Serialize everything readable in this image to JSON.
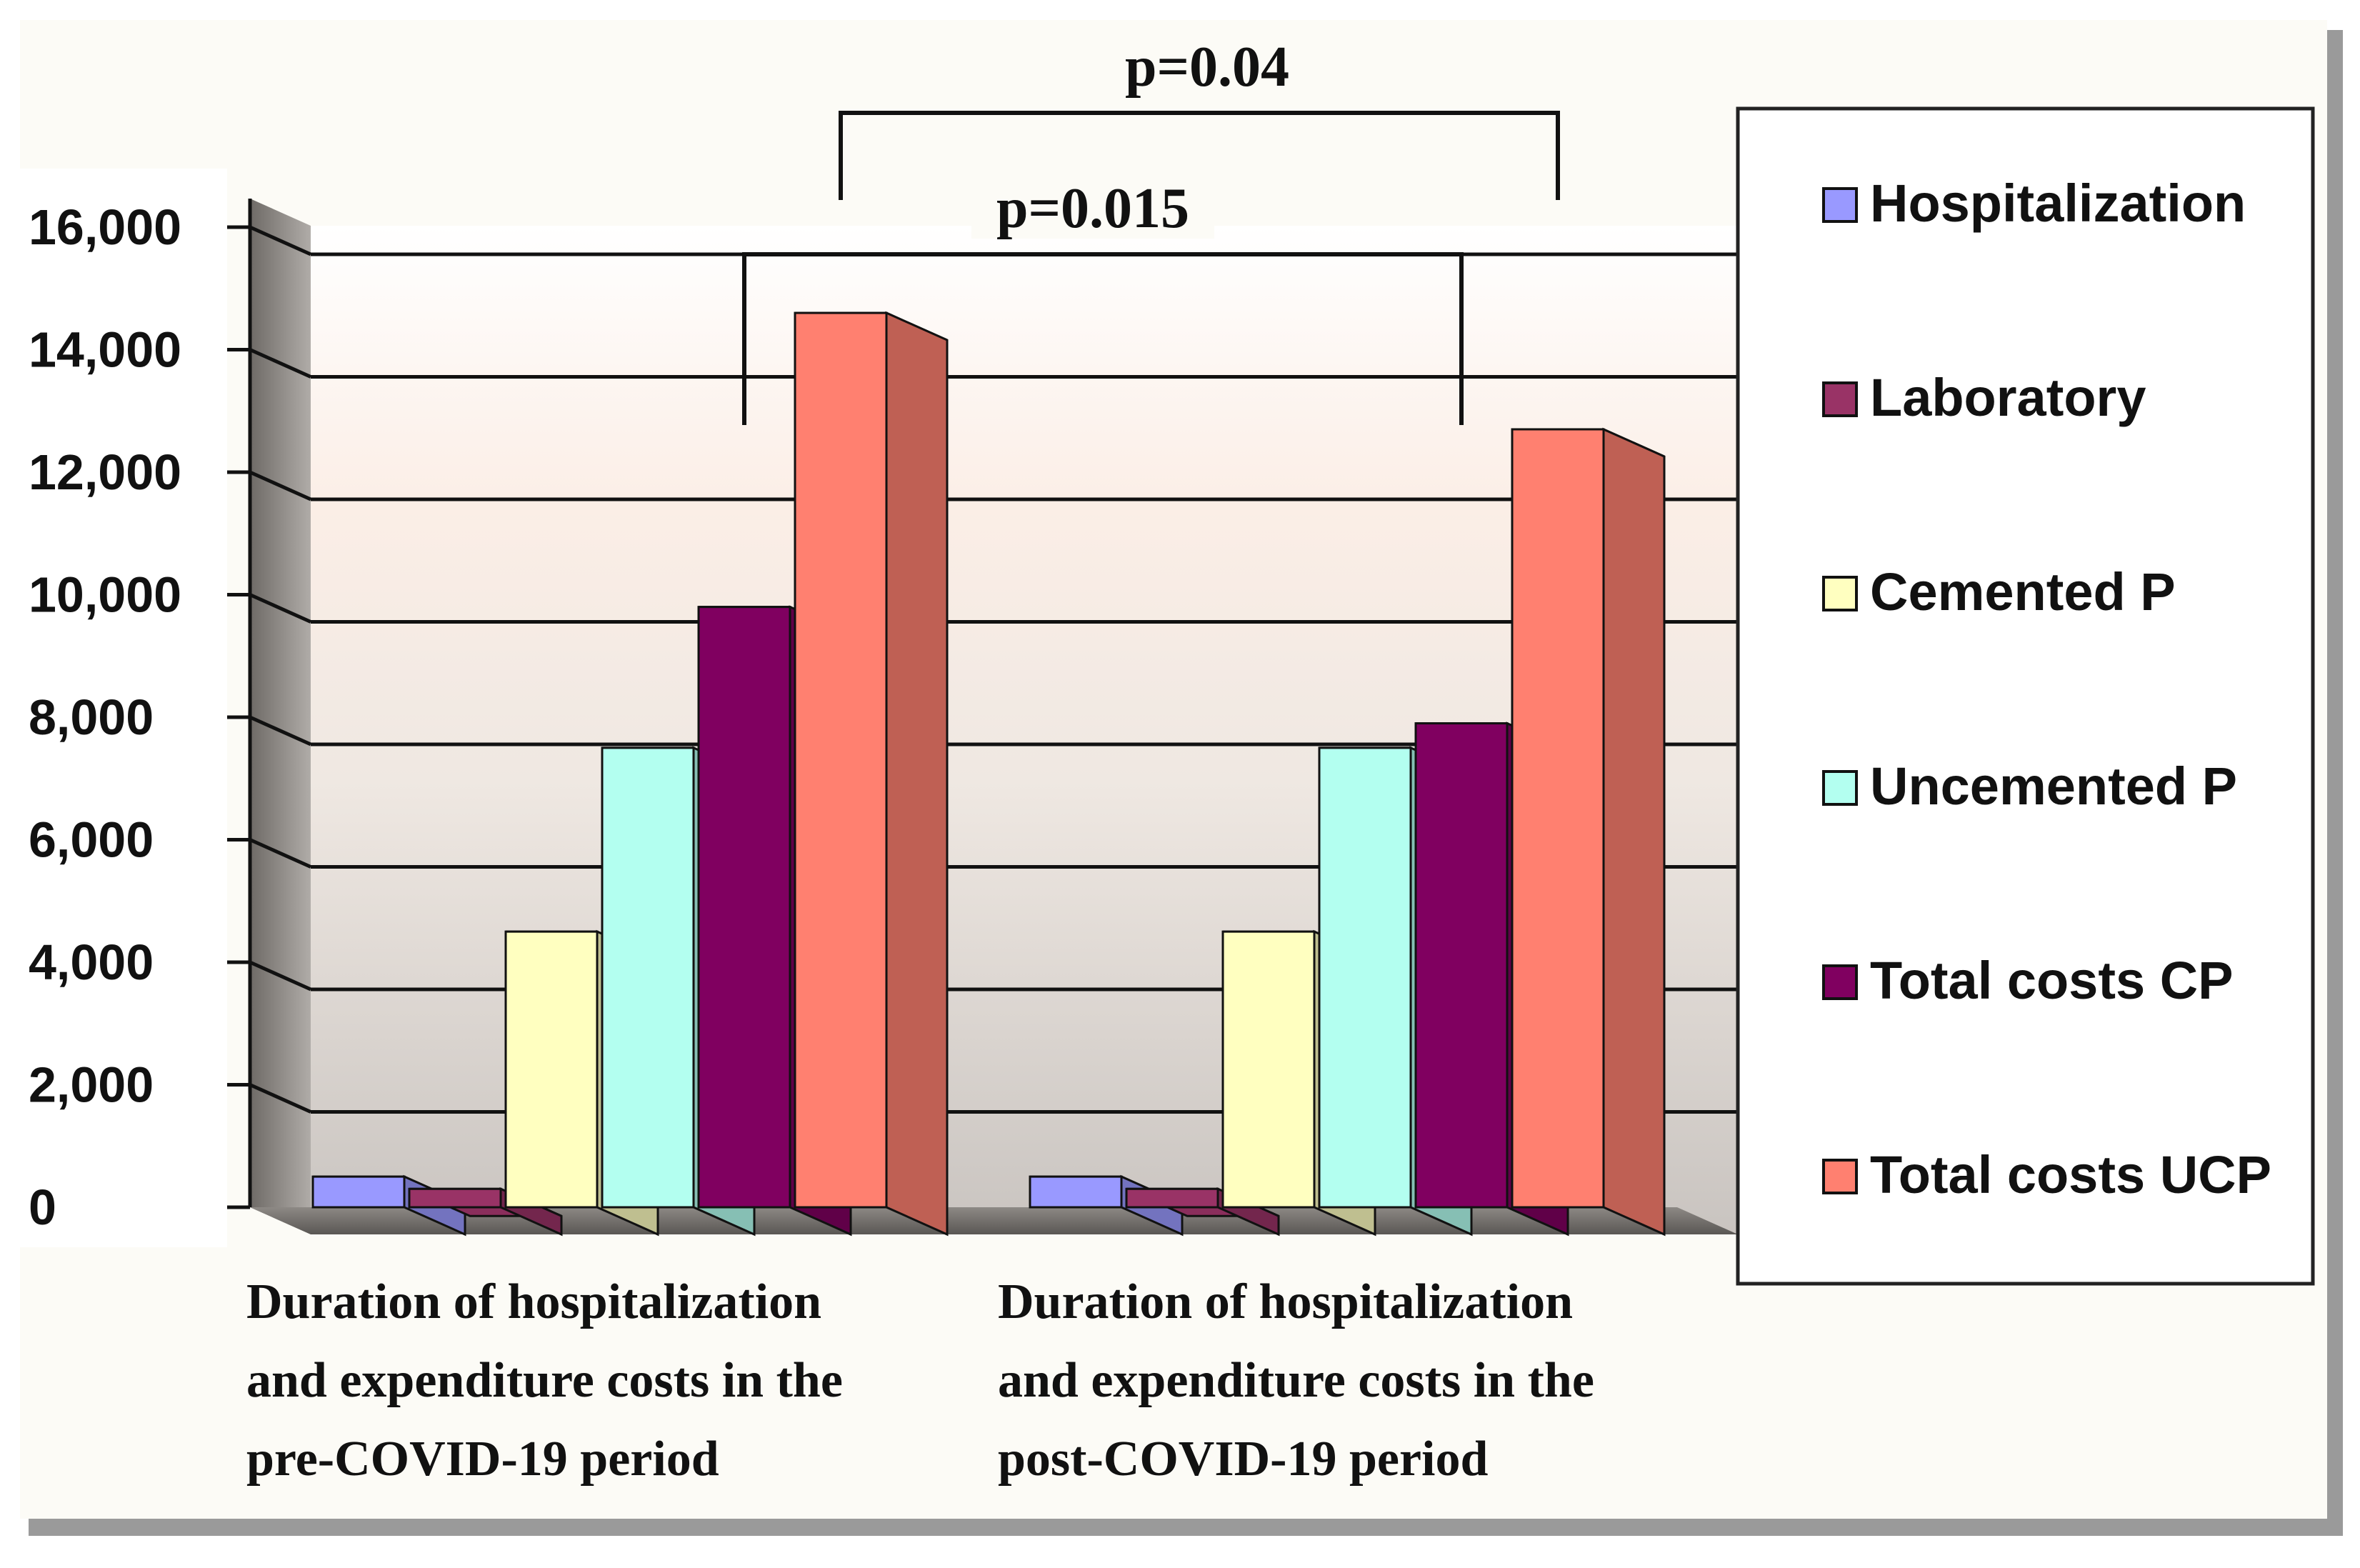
{
  "chart_data": {
    "type": "bar",
    "title": "",
    "xlabel": "",
    "ylabel": "",
    "ylim": [
      0,
      16000
    ],
    "y_ticks": [
      0,
      2000,
      4000,
      6000,
      8000,
      10000,
      12000,
      14000,
      16000
    ],
    "y_tick_labels": [
      "0",
      "2,000",
      "4,000",
      "6,000",
      "8,000",
      "10,000",
      "12,000",
      "14,000",
      "16,000"
    ],
    "grid": true,
    "legend_position": "right",
    "categories": [
      [
        "Duration of hospitalization",
        "and expenditure costs in the",
        "pre-COVID-19 period"
      ],
      [
        "Duration of hospitalization",
        "and expenditure costs in the",
        "post-COVID-19 period"
      ]
    ],
    "series": [
      {
        "name": "Hospitalization",
        "color": "#9999ff",
        "values": [
          500,
          500
        ]
      },
      {
        "name": "Laboratory",
        "color": "#993366",
        "values": [
          300,
          300
        ]
      },
      {
        "name": "Cemented P",
        "color": "#ffffc0",
        "values": [
          4500,
          4500
        ]
      },
      {
        "name": "Uncemented P",
        "color": "#b3fff0",
        "values": [
          7500,
          7500
        ]
      },
      {
        "name": "Total costs CP",
        "color": "#800060",
        "values": [
          9800,
          7900
        ]
      },
      {
        "name": "Total costs UCP",
        "color": "#ff8070",
        "values": [
          14600,
          12700
        ]
      }
    ],
    "annotations": [
      {
        "text": "p=0.04",
        "from_category": 0,
        "from_series": 5,
        "to_category": 1,
        "to_series": 5
      },
      {
        "text": "p=0.015",
        "from_category": 0,
        "from_series": 4,
        "to_category": 1,
        "to_series": 4
      }
    ]
  }
}
